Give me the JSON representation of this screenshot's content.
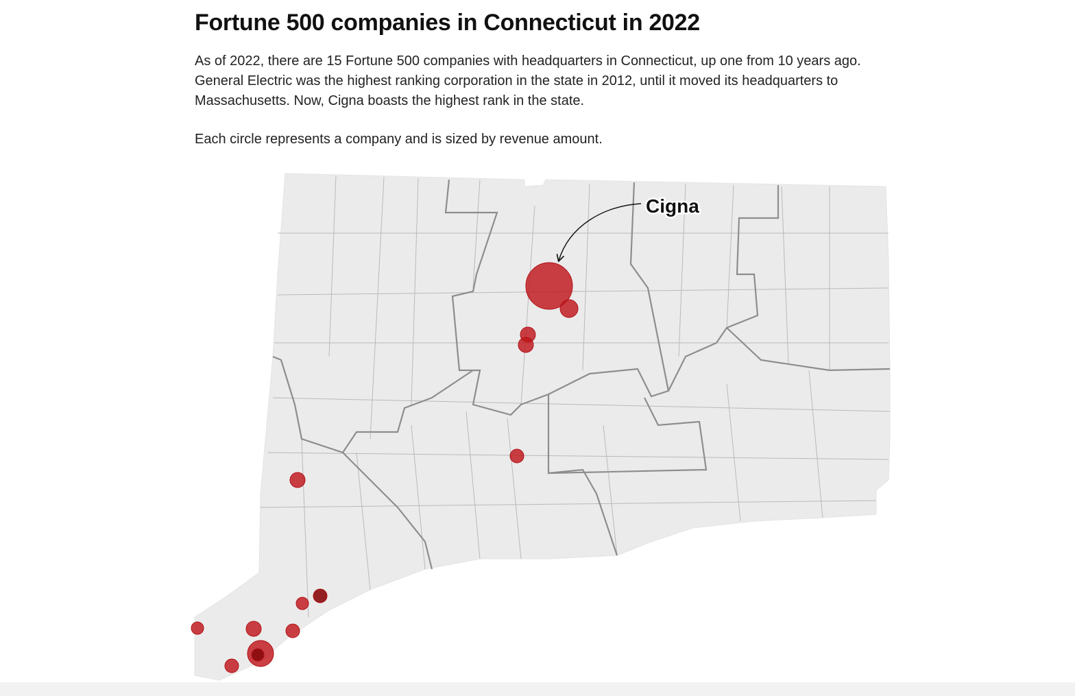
{
  "header": {
    "title": "Fortune 500 companies in Connecticut in 2022",
    "description": "As of 2022, there are 15 Fortune 500 companies with headquarters in Connecticut, up one from 10 years ago. General Electric was the highest ranking corporation in the state in 2012, until it moved its headquarters to Massachusetts. Now, Cigna boasts the highest rank in the state.",
    "note": "Each circle represents a company and is sized by revenue amount."
  },
  "map": {
    "annotation": "Cigna"
  }
}
